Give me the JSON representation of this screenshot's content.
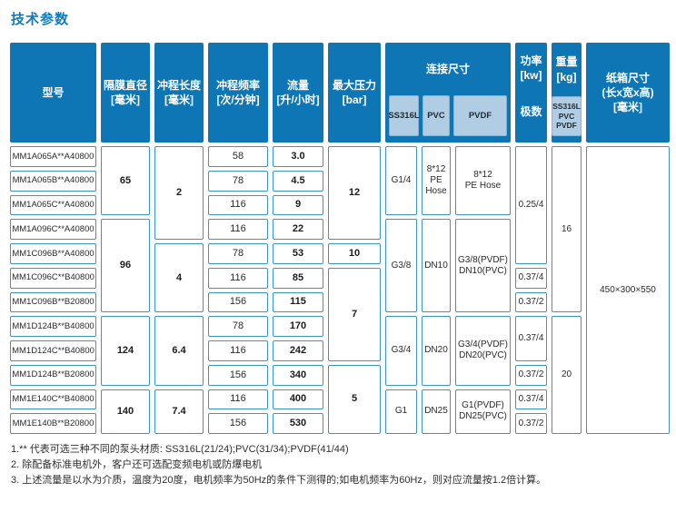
{
  "title": "技术参数",
  "colors": {
    "header_blue": "#0e76b4",
    "subheader_light_blue": "#b0cde4",
    "cell_border_blue": "#3d94c6",
    "title_blue": "#0e7abd"
  },
  "table": {
    "headers": {
      "model": "型号",
      "diaphragm": "隔膜直径\n[毫米]",
      "stroke": "冲程长度\n[毫米]",
      "frequency": "冲程频率\n[次/分钟]",
      "flow": "流量\n[升/小时]",
      "pressure": "最大压力\n[bar]",
      "connection": {
        "label": "连接尺寸",
        "subs": [
          "SS316L",
          "PVC",
          "PVDF"
        ]
      },
      "power": {
        "top": "功率\n[kw]",
        "bottom": "极数"
      },
      "weight": {
        "top": "重量\n[kg]",
        "sub": "SS316L\nPVC\nPVDF"
      },
      "carton": "纸箱尺寸\n(长x宽x高)\n[毫米]"
    },
    "body": {
      "models": [
        "MM1A065A**A40800",
        "MM1A065B**A40800",
        "MM1A065C**A40800",
        "MM1A096C**A40800",
        "MM1C096B**A40800",
        "MM1C096C**B40800",
        "MM1C096B**B20800",
        "MM1D124B**B40800",
        "MM1D124C**B40800",
        "MM1D124B**B20800",
        "MM1E140C**B40800",
        "MM1E140B**B20800"
      ],
      "diaphragm": [
        "65",
        "96",
        "124",
        "140"
      ],
      "stroke": [
        "2",
        "4",
        "6.4",
        "7.4"
      ],
      "frequency": [
        "58",
        "78",
        "116",
        "116",
        "78",
        "116",
        "156",
        "78",
        "116",
        "156",
        "116",
        "156"
      ],
      "flow": [
        "3.0",
        "4.5",
        "9",
        "22",
        "53",
        "85",
        "115",
        "170",
        "242",
        "340",
        "400",
        "530"
      ],
      "pressure": [
        "12",
        "10",
        "7",
        "5"
      ],
      "conn_ss316l": [
        "G1/4",
        "G3/8",
        "G3/4",
        "G1"
      ],
      "conn_pvc": [
        "8*12\nPE\nHose",
        "DN10",
        "DN20",
        "DN25"
      ],
      "conn_pvdf": [
        "8*12\nPE Hose",
        "G3/8(PVDF)\nDN10(PVC)",
        "G3/4(PVDF)\nDN20(PVC)",
        "G1(PVDF)\nDN25(PVC)"
      ],
      "power": [
        "0.25/4",
        "0.37/4",
        "0.37/2",
        "0.37/4",
        "0.37/2",
        "0.37/4",
        "0.37/2"
      ],
      "weight": [
        "16",
        "20"
      ],
      "carton": "450×300×550"
    }
  },
  "notes": [
    "1.** 代表可选三种不同的泵头材质: SS316L(21/24);PVC(31/34);PVDF(41/44)",
    "2. 除配备标准电机外，客户还可选配变频电机或防爆电机",
    "3. 上述流量是以水为介质，温度为20度，电机频率为50Hz的条件下测得的;如电机频率为60Hz，则对应流量按1.2倍计算。"
  ]
}
